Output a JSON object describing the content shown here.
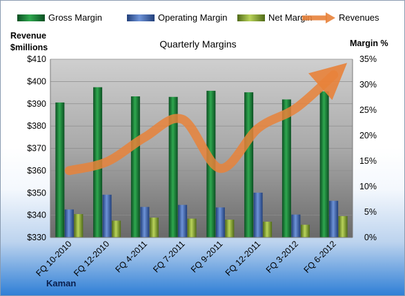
{
  "chart_data": {
    "type": "bar",
    "title": "Quarterly Margins",
    "categories": [
      "FQ 10-2010",
      "FQ 12-2010",
      "FQ 4-2011",
      "FQ 7-2011",
      "FQ 9-2011",
      "FQ 12-2011",
      "FQ 3-2012",
      "FQ 6-2012"
    ],
    "series": [
      {
        "name": "Gross Margin",
        "axis": "right",
        "color": "#1f8a3a",
        "values": [
          26.5,
          29.5,
          27.7,
          27.6,
          28.8,
          28.5,
          27.1,
          28.7
        ]
      },
      {
        "name": "Operating Margin",
        "axis": "right",
        "color": "#3f68b5",
        "values": [
          5.5,
          8.4,
          6.0,
          6.4,
          5.9,
          8.8,
          4.5,
          7.2
        ]
      },
      {
        "name": "Net Margin",
        "axis": "right",
        "color": "#8fb13a",
        "values": [
          4.6,
          3.3,
          3.9,
          3.7,
          3.5,
          3.1,
          2.5,
          4.2
        ]
      },
      {
        "name": "Revenues",
        "axis": "left",
        "type": "line",
        "color": "#e8823a",
        "values": [
          360,
          364,
          375,
          383,
          361,
          379,
          388,
          403
        ]
      }
    ],
    "y_left": {
      "label_line1": "Revenue",
      "label_line2": "$millions",
      "min": 330,
      "max": 410,
      "step": 10,
      "prefix": "$"
    },
    "y_right": {
      "label": "Margin %",
      "min": 0,
      "max": 35,
      "step": 5,
      "suffix": "%"
    },
    "grid": true,
    "legend_position": "top"
  },
  "footer": {
    "company": "Kaman"
  }
}
